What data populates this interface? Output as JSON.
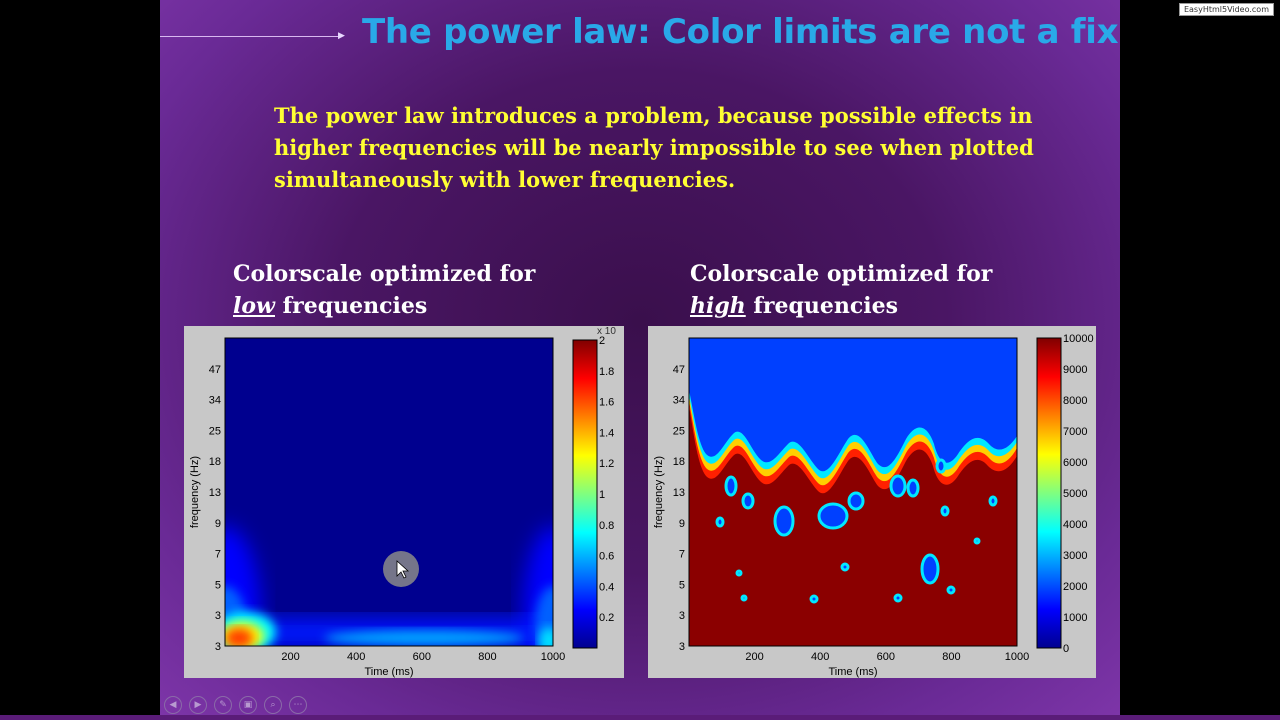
{
  "watermark": "EasyHtml5Video.com",
  "slide": {
    "title": "The power law: Color limits are not a fix",
    "body": "The power law introduces a problem, because possible effects in higher frequencies will be nearly impossible to see when plotted simultaneously with lower frequencies.",
    "captions": {
      "left": {
        "line1": "Colorscale optimized for",
        "emph": "low",
        "rest": " frequencies"
      },
      "right": {
        "line1": "Colorscale optimized for",
        "emph": "high",
        "rest": " frequencies"
      }
    }
  },
  "nav_icons": [
    "previous-icon",
    "next-icon",
    "pen-icon",
    "slides-icon",
    "zoom-icon",
    "more-icon"
  ],
  "colors": {
    "title": "#29a9e8",
    "body_text": "#ffff33",
    "slide_bg": "#4a1664"
  },
  "chart_data": [
    {
      "type": "heatmap",
      "title": "",
      "xlabel": "Time (ms)",
      "ylabel": "frequency (Hz)",
      "x_ticks": [
        "200",
        "400",
        "600",
        "800",
        "1000"
      ],
      "y_ticks": [
        "3",
        "3",
        "5",
        "7",
        "9",
        "13",
        "18",
        "25",
        "34",
        "47"
      ],
      "xlim": [
        0,
        1000
      ],
      "colorbar": {
        "ticks": [
          "0.2",
          "0.4",
          "0.6",
          "0.8",
          "1",
          "1.2",
          "1.4",
          "1.6",
          "1.8",
          "2"
        ],
        "multiplier": "x 10",
        "range": [
          0,
          2
        ]
      },
      "description_values": {
        "dominant_region": "low frequencies, edges of time window",
        "peak_near": {
          "time_ms": 60,
          "freq_hz": 3
        }
      }
    },
    {
      "type": "heatmap",
      "title": "",
      "xlabel": "Time (ms)",
      "ylabel": "frequency (Hz)",
      "x_ticks": [
        "200",
        "400",
        "600",
        "800",
        "1000"
      ],
      "y_ticks": [
        "3",
        "3",
        "5",
        "7",
        "9",
        "13",
        "18",
        "25",
        "34",
        "47"
      ],
      "xlim": [
        0,
        1000
      ],
      "colorbar": {
        "ticks": [
          "0",
          "1000",
          "2000",
          "3000",
          "4000",
          "5000",
          "6000",
          "7000",
          "8000",
          "9000",
          "10000"
        ],
        "range": [
          0,
          10000
        ]
      },
      "description_values": {
        "saturated_below_hz": 13,
        "blue_above_hz": 18
      }
    }
  ]
}
